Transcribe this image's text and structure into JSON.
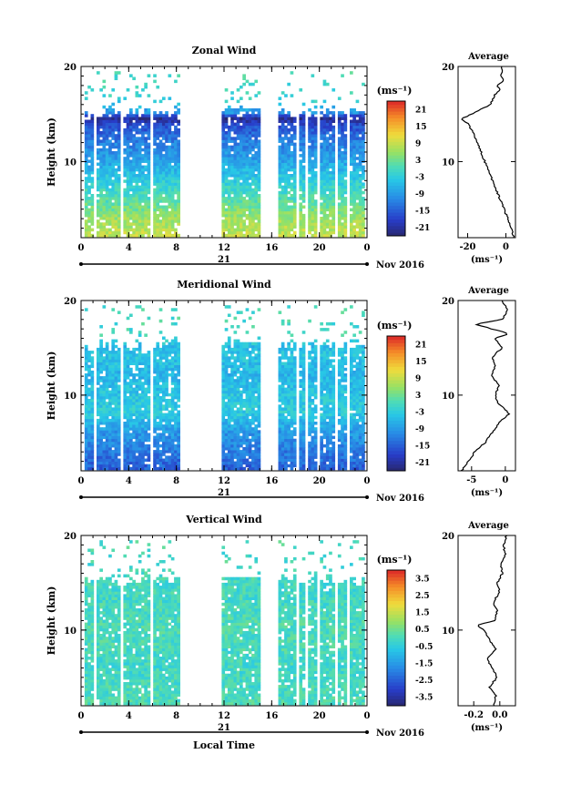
{
  "figure": {
    "xlabel": "Local Time",
    "date_label": "Nov 2016",
    "day_label": "21",
    "ylabel": "Height (km)",
    "avg_title": "Average",
    "unit_label": "(ms⁻¹)",
    "avg_unit_label": "(ms⁻¹)"
  },
  "chart_data": [
    {
      "type": "heatmap",
      "title": "Zonal Wind",
      "xlabel": "",
      "ylabel": "Height (km)",
      "xlim": [
        0,
        24
      ],
      "ylim": [
        2,
        20
      ],
      "xticks": [
        "0",
        "4",
        "8",
        "12",
        "16",
        "20",
        "0"
      ],
      "yticks": [
        "10",
        "20"
      ],
      "colorbar": {
        "ticks": [
          "21",
          "15",
          "9",
          "3",
          "-3",
          "-9",
          "-15",
          "-21"
        ],
        "range": [
          -24,
          24
        ]
      },
      "data_gaps_hours": [
        [
          1.0,
          1.3
        ],
        [
          3.1,
          3.4
        ],
        [
          5.6,
          5.9
        ],
        [
          8.3,
          11.6
        ],
        [
          14.9,
          16.4
        ],
        [
          17.9,
          18.2
        ],
        [
          18.7,
          19.0
        ],
        [
          19.6,
          19.9
        ],
        [
          21.1,
          21.4
        ],
        [
          22.1,
          22.4
        ]
      ],
      "profile_by_height": [
        [
          2,
          9
        ],
        [
          4,
          6
        ],
        [
          6,
          1
        ],
        [
          8,
          -3
        ],
        [
          10,
          -8
        ],
        [
          12,
          -12
        ],
        [
          13.5,
          -16
        ],
        [
          14.5,
          -22
        ],
        [
          15,
          -10
        ],
        [
          16,
          -3
        ],
        [
          18,
          0
        ]
      ],
      "average_profile": {
        "title": "Average",
        "xlabel": "(ms⁻¹)",
        "xticks": [
          "-20",
          "0"
        ],
        "xlim": [
          -25,
          5
        ],
        "ylim": [
          2,
          20
        ],
        "yticks": [
          "10",
          "20"
        ],
        "points": [
          [
            2,
            4
          ],
          [
            3,
            3
          ],
          [
            4,
            1
          ],
          [
            5,
            -1
          ],
          [
            6,
            -3
          ],
          [
            7,
            -5
          ],
          [
            8,
            -7
          ],
          [
            9,
            -9
          ],
          [
            10,
            -11
          ],
          [
            11,
            -13
          ],
          [
            12,
            -15
          ],
          [
            13,
            -17
          ],
          [
            14,
            -20
          ],
          [
            14.5,
            -23
          ],
          [
            15,
            -18
          ],
          [
            16,
            -8
          ],
          [
            17,
            -6
          ],
          [
            17.5,
            -3
          ],
          [
            18,
            -5
          ],
          [
            18.5,
            -1
          ],
          [
            19,
            -3
          ],
          [
            19.5,
            -2
          ],
          [
            20,
            -2
          ]
        ]
      }
    },
    {
      "type": "heatmap",
      "title": "Meridional Wind",
      "xlabel": "",
      "ylabel": "Height (km)",
      "xlim": [
        0,
        24
      ],
      "ylim": [
        2,
        20
      ],
      "xticks": [
        "0",
        "4",
        "8",
        "12",
        "16",
        "20",
        "0"
      ],
      "yticks": [
        "10",
        "20"
      ],
      "colorbar": {
        "ticks": [
          "21",
          "15",
          "9",
          "3",
          "-3",
          "-9",
          "-15",
          "-21"
        ],
        "range": [
          -24,
          24
        ]
      },
      "data_gaps_hours": [
        [
          1.0,
          1.3
        ],
        [
          3.1,
          3.4
        ],
        [
          5.6,
          5.9
        ],
        [
          8.3,
          11.6
        ],
        [
          14.9,
          16.4
        ],
        [
          17.9,
          18.2
        ],
        [
          18.7,
          19.0
        ],
        [
          19.6,
          19.9
        ],
        [
          21.1,
          21.4
        ],
        [
          22.1,
          22.4
        ]
      ],
      "profile_by_height": [
        [
          2,
          -15
        ],
        [
          4,
          -12
        ],
        [
          6,
          -9
        ],
        [
          8,
          -3
        ],
        [
          10,
          -4
        ],
        [
          12,
          -6
        ],
        [
          14,
          -4
        ],
        [
          15,
          -5
        ],
        [
          16,
          -1
        ],
        [
          18,
          0
        ]
      ],
      "average_profile": {
        "title": "Average",
        "xlabel": "(ms⁻¹)",
        "xticks": [
          "-5",
          "0"
        ],
        "xlim": [
          -7,
          1.5
        ],
        "ylim": [
          2,
          20
        ],
        "yticks": [
          "10",
          "20"
        ],
        "points": [
          [
            2,
            -6.5
          ],
          [
            3,
            -5.5
          ],
          [
            4,
            -4.5
          ],
          [
            5,
            -3
          ],
          [
            6,
            -2
          ],
          [
            7,
            -1
          ],
          [
            8,
            0.5
          ],
          [
            8.5,
            0
          ],
          [
            9,
            -1
          ],
          [
            10,
            -1.5
          ],
          [
            11,
            -1
          ],
          [
            12,
            -2
          ],
          [
            13,
            -1.5
          ],
          [
            14,
            -2
          ],
          [
            15,
            -0.5
          ],
          [
            16,
            -1.5
          ],
          [
            16.5,
            0.5
          ],
          [
            17,
            -2
          ],
          [
            17.5,
            -4.5
          ],
          [
            18,
            -0.5
          ],
          [
            18.5,
            0
          ],
          [
            19,
            0.3
          ],
          [
            20,
            -0.5
          ]
        ]
      }
    },
    {
      "type": "heatmap",
      "title": "Vertical Wind",
      "xlabel": "Local Time",
      "ylabel": "Height (km)",
      "xlim": [
        0,
        24
      ],
      "ylim": [
        2,
        20
      ],
      "xticks": [
        "0",
        "4",
        "8",
        "12",
        "16",
        "20",
        "0"
      ],
      "yticks": [
        "10",
        "20"
      ],
      "colorbar": {
        "ticks": [
          "3.5",
          "2.5",
          "1.5",
          "0.5",
          "-0.5",
          "-1.5",
          "-2.5",
          "-3.5"
        ],
        "range": [
          -4,
          4
        ]
      },
      "data_gaps_hours": [
        [
          1.0,
          1.3
        ],
        [
          3.1,
          3.4
        ],
        [
          5.6,
          5.9
        ],
        [
          8.3,
          11.6
        ],
        [
          14.9,
          16.4
        ],
        [
          17.9,
          18.2
        ],
        [
          18.7,
          19.0
        ],
        [
          19.6,
          19.9
        ],
        [
          21.1,
          21.4
        ],
        [
          22.1,
          22.4
        ]
      ],
      "profile_by_height": [
        [
          2,
          0.1
        ],
        [
          6,
          -0.1
        ],
        [
          10,
          0.1
        ],
        [
          14,
          -0.1
        ],
        [
          18,
          0.0
        ]
      ],
      "average_profile": {
        "title": "Average",
        "xlabel": "(ms⁻¹)",
        "xticks": [
          "-0.2",
          "0.0"
        ],
        "xlim": [
          -0.32,
          0.12
        ],
        "ylim": [
          2,
          20
        ],
        "yticks": [
          "10",
          "20"
        ],
        "points": [
          [
            2,
            -0.05
          ],
          [
            3,
            -0.03
          ],
          [
            4,
            -0.08
          ],
          [
            5,
            -0.02
          ],
          [
            6,
            -0.06
          ],
          [
            7,
            -0.1
          ],
          [
            8,
            -0.03
          ],
          [
            9,
            -0.08
          ],
          [
            10,
            -0.12
          ],
          [
            10.5,
            -0.18
          ],
          [
            11,
            -0.04
          ],
          [
            12,
            -0.02
          ],
          [
            13,
            -0.05
          ],
          [
            14,
            0.0
          ],
          [
            15,
            -0.02
          ],
          [
            16,
            0.02
          ],
          [
            17,
            0.01
          ],
          [
            18,
            0.04
          ],
          [
            19,
            0.03
          ],
          [
            20,
            0.05
          ]
        ]
      }
    }
  ]
}
